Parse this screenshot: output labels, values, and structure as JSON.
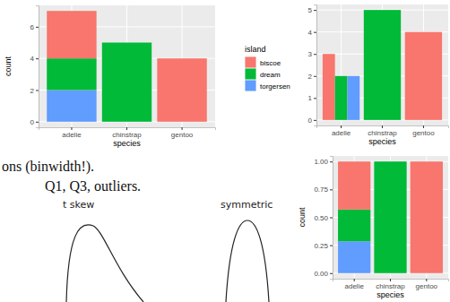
{
  "chart_data": [
    {
      "type": "bar",
      "stacked": true,
      "categories": [
        "adelie",
        "chinstrap",
        "gentoo"
      ],
      "series": [
        {
          "name": "biscoe",
          "color": "#F8766D",
          "values": [
            3,
            null,
            4
          ]
        },
        {
          "name": "dream",
          "color": "#00BA38",
          "values": [
            2,
            5,
            null
          ]
        },
        {
          "name": "torgersen",
          "color": "#619CFF",
          "values": [
            2,
            null,
            null
          ]
        }
      ],
      "ylim": [
        -0.35,
        7.35
      ],
      "yticks": [
        0,
        2,
        4,
        6
      ],
      "xlabel": "species",
      "ylabel": "count",
      "legend": "right",
      "legend_title": "island",
      "grid": true
    },
    {
      "type": "bar",
      "stacked": false,
      "categories": [
        "adelie",
        "chinstrap",
        "gentoo"
      ],
      "series": [
        {
          "name": "biscoe",
          "color": "#F8766D",
          "values": [
            3,
            null,
            4
          ]
        },
        {
          "name": "dream",
          "color": "#00BA38",
          "values": [
            2,
            5,
            null
          ]
        },
        {
          "name": "torgersen",
          "color": "#619CFF",
          "values": [
            2,
            null,
            null
          ]
        }
      ],
      "ylim": [
        -0.25,
        5.25
      ],
      "yticks": [
        0,
        1,
        2,
        3,
        4,
        5
      ],
      "xlabel": "species",
      "grid": true
    },
    {
      "type": "bar",
      "stacked": true,
      "categories": [
        "adelie",
        "chinstrap",
        "gentoo"
      ],
      "series": [
        {
          "name": "biscoe",
          "color": "#F8766D",
          "values": [
            0.43,
            null,
            1
          ]
        },
        {
          "name": "dream",
          "color": "#00BA38",
          "values": [
            0.285,
            1,
            null
          ]
        },
        {
          "name": "torgersen",
          "color": "#619CFF",
          "values": [
            0.285,
            null,
            null
          ]
        }
      ],
      "ylim": [
        -0.05,
        1.05
      ],
      "yticks": [
        {
          "value": 0,
          "label": "0.00"
        },
        {
          "value": 0.25,
          "label": "0.25"
        },
        {
          "value": 0.5,
          "label": "0.50"
        },
        {
          "value": 0.75,
          "label": "0.75"
        },
        {
          "value": 1,
          "label": "1.00"
        }
      ],
      "xlabel": "species",
      "ylabel": "count",
      "grid": true
    }
  ],
  "notes": [
    "ons (binwidth!).",
    "Q1, Q3, outliers."
  ],
  "sketch_labels": [
    "t skew",
    "symmetric"
  ]
}
